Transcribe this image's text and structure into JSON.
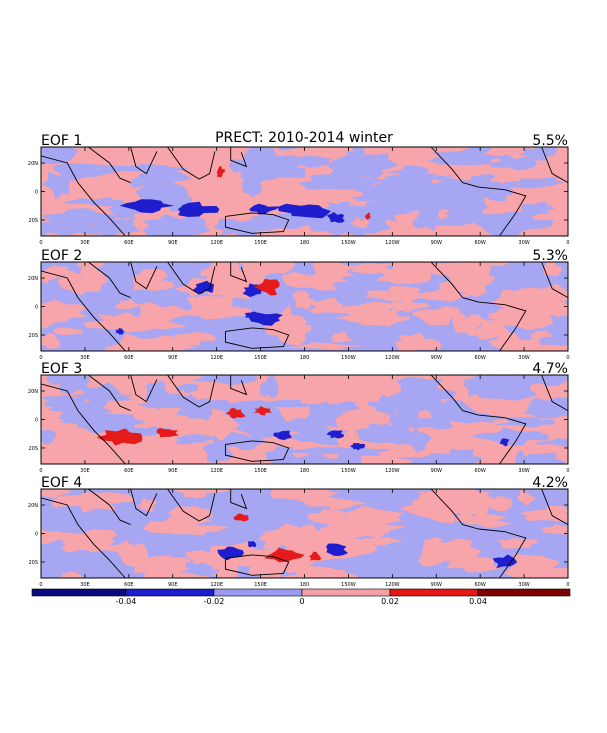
{
  "title": "PRECT: 2010-2014 winter",
  "panels": [
    {
      "label": "EOF 1",
      "variance": "5.5%"
    },
    {
      "label": "EOF 2",
      "variance": "5.3%"
    },
    {
      "label": "EOF 3",
      "variance": "4.7%"
    },
    {
      "label": "EOF 4",
      "variance": "4.2%"
    }
  ],
  "lat_ticks": [
    "20N",
    "0",
    "20S"
  ],
  "lon_ticks": [
    "0",
    "30E",
    "60E",
    "90E",
    "120E",
    "150E",
    "180",
    "150W",
    "120W",
    "90W",
    "60W",
    "30W",
    "0"
  ],
  "colorbar": {
    "tick_labels": [
      "-0.04",
      "-0.02",
      "0",
      "0.02",
      "0.04"
    ],
    "colors": [
      "#0a0a80",
      "#1d1dcf",
      "#9a9af0",
      "#f5a0a4",
      "#e51717",
      "#7f0000"
    ]
  },
  "colors": {
    "neg_light": "#a6a6f2",
    "pos_light": "#f7a4aa",
    "neg_strong": "#1e1ecf",
    "pos_strong": "#e51b1b"
  }
}
